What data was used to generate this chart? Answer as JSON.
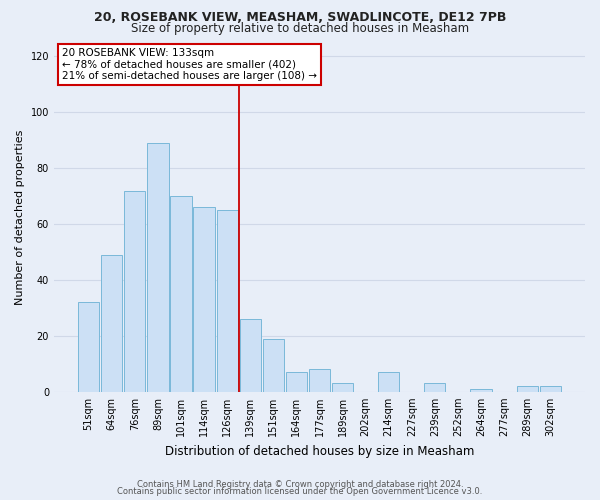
{
  "title1": "20, ROSEBANK VIEW, MEASHAM, SWADLINCOTE, DE12 7PB",
  "title2": "Size of property relative to detached houses in Measham",
  "xlabel": "Distribution of detached houses by size in Measham",
  "ylabel": "Number of detached properties",
  "bar_labels": [
    "51sqm",
    "64sqm",
    "76sqm",
    "89sqm",
    "101sqm",
    "114sqm",
    "126sqm",
    "139sqm",
    "151sqm",
    "164sqm",
    "177sqm",
    "189sqm",
    "202sqm",
    "214sqm",
    "227sqm",
    "239sqm",
    "252sqm",
    "264sqm",
    "277sqm",
    "289sqm",
    "302sqm"
  ],
  "bar_values": [
    32,
    49,
    72,
    89,
    70,
    66,
    65,
    26,
    19,
    7,
    8,
    3,
    0,
    7,
    0,
    3,
    0,
    1,
    0,
    2,
    2
  ],
  "bar_color": "#cce0f5",
  "bar_edgecolor": "#7ab8d9",
  "vline_x": 6.5,
  "vline_color": "#cc0000",
  "ylim": [
    0,
    125
  ],
  "yticks": [
    0,
    20,
    40,
    60,
    80,
    100,
    120
  ],
  "annotation_title": "20 ROSEBANK VIEW: 133sqm",
  "annotation_line1": "← 78% of detached houses are smaller (402)",
  "annotation_line2": "21% of semi-detached houses are larger (108) →",
  "annotation_box_edgecolor": "#cc0000",
  "footer1": "Contains HM Land Registry data © Crown copyright and database right 2024.",
  "footer2": "Contains public sector information licensed under the Open Government Licence v3.0.",
  "bg_color": "#e8eef8",
  "plot_bg_color": "#e8eef8",
  "grid_color": "#d0d8e8",
  "title1_fontsize": 9.0,
  "title2_fontsize": 8.5,
  "xlabel_fontsize": 8.5,
  "ylabel_fontsize": 8.0,
  "tick_fontsize": 7.0,
  "ann_fontsize": 7.5,
  "footer_fontsize": 6.0
}
